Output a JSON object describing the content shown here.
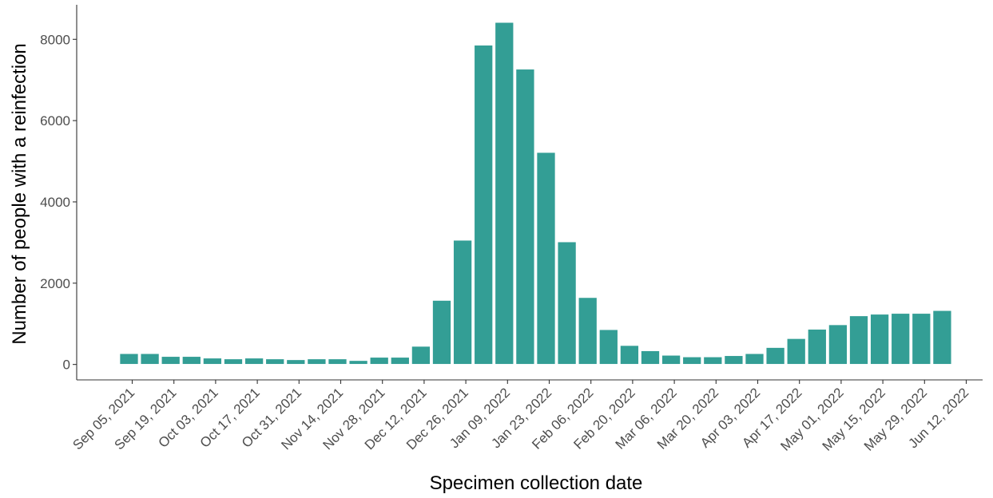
{
  "chart_data": {
    "type": "bar",
    "title": "",
    "xlabel": "Specimen collection date",
    "ylabel": "Number of people with a reinfection",
    "ylim": [
      -380,
      8850
    ],
    "yticks": [
      0,
      2000,
      4000,
      6000,
      8000
    ],
    "x_tick_labels": [
      "Sep 05, 2021",
      "Sep 19, 2021",
      "Oct 03, 2021",
      "Oct 17, 2021",
      "Oct 31, 2021",
      "Nov 14, 2021",
      "Nov 28, 2021",
      "Dec 12, 2021",
      "Dec 26, 2021",
      "Jan 09, 2022",
      "Jan 23, 2022",
      "Feb 06, 2022",
      "Feb 20, 2022",
      "Mar 06, 2022",
      "Mar 20, 2022",
      "Apr 03, 2022",
      "Apr 17, 2022",
      "May 01, 2022",
      "May 15, 2022",
      "May 29, 2022",
      "Jun 12, 2022"
    ],
    "categories": [
      "Sep 05, 2021",
      "Sep 12, 2021",
      "Sep 19, 2021",
      "Sep 26, 2021",
      "Oct 03, 2021",
      "Oct 10, 2021",
      "Oct 17, 2021",
      "Oct 24, 2021",
      "Oct 31, 2021",
      "Nov 07, 2021",
      "Nov 14, 2021",
      "Nov 21, 2021",
      "Nov 28, 2021",
      "Dec 05, 2021",
      "Dec 12, 2021",
      "Dec 19, 2021",
      "Dec 26, 2021",
      "Jan 02, 2022",
      "Jan 09, 2022",
      "Jan 16, 2022",
      "Jan 23, 2022",
      "Jan 30, 2022",
      "Feb 06, 2022",
      "Feb 13, 2022",
      "Feb 20, 2022",
      "Feb 27, 2022",
      "Mar 06, 2022",
      "Mar 13, 2022",
      "Mar 20, 2022",
      "Mar 27, 2022",
      "Apr 03, 2022",
      "Apr 10, 2022",
      "Apr 17, 2022",
      "Apr 24, 2022",
      "May 01, 2022",
      "May 08, 2022",
      "May 15, 2022",
      "May 22, 2022",
      "May 29, 2022",
      "Jun 05, 2022"
    ],
    "values": [
      270,
      270,
      200,
      200,
      160,
      140,
      160,
      140,
      120,
      140,
      140,
      100,
      180,
      180,
      450,
      1580,
      3060,
      7860,
      8420,
      7270,
      5220,
      3020,
      1650,
      860,
      470,
      340,
      230,
      190,
      190,
      220,
      270,
      420,
      640,
      870,
      980,
      1200,
      1240,
      1260,
      1260,
      1330
    ],
    "bar_color": "#339E95",
    "grid": false,
    "legend": "none"
  }
}
